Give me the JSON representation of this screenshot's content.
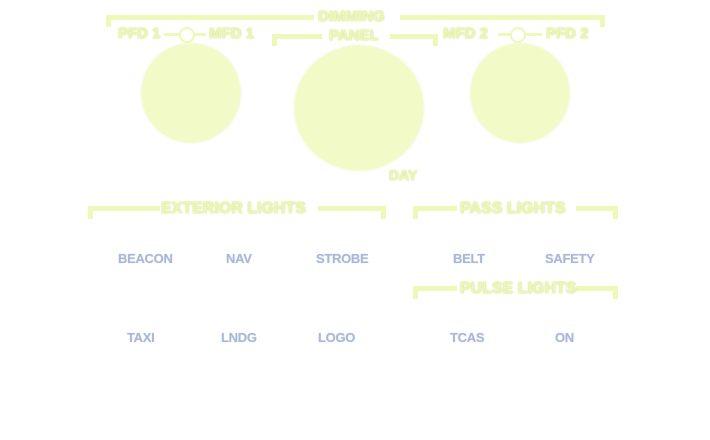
{
  "dimming": {
    "title": "DIMMING",
    "pfd1": "PFD 1",
    "mfd1": "MFD 1",
    "panel": "PANEL",
    "mfd2": "MFD 2",
    "pfd2": "PFD 2",
    "day": "DAY"
  },
  "exterior_lights": {
    "title": "EXTERIOR LIGHTS",
    "buttons": [
      "BEACON",
      "NAV",
      "STROBE",
      "TAXI",
      "LNDG",
      "LOGO"
    ]
  },
  "pass_lights": {
    "title": "PASS LIGHTS",
    "buttons": [
      "BELT",
      "SAFETY"
    ]
  },
  "pulse_lights": {
    "title": "PULSE LIGHTS",
    "buttons": [
      "TCAS",
      "ON"
    ]
  },
  "colors": {
    "legend": "#eef5b8",
    "button_text": "#a9b8d6",
    "background": "#ffffff"
  }
}
